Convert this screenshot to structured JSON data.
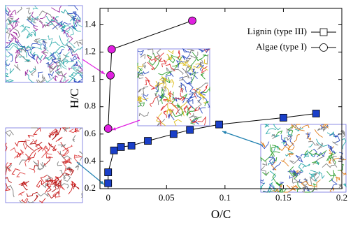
{
  "chart_data": {
    "type": "line",
    "x_label": "O/C",
    "y_label": "H/C",
    "xlim": [
      -0.007,
      0.2
    ],
    "ylim": [
      0.2,
      1.52
    ],
    "xticks": [
      0,
      0.05,
      0.1,
      0.15,
      0.2
    ],
    "yticks": [
      0.2,
      0.4,
      0.6,
      0.8,
      1,
      1.2,
      1.4
    ],
    "legend": "upper right",
    "series": [
      {
        "name": "Lignin (type III)",
        "color": "#1a3fc8",
        "marker": "square",
        "x": [
          0,
          0,
          0.005,
          0.011,
          0.02,
          0.034,
          0.056,
          0.07,
          0.095,
          0.15,
          0.178
        ],
        "values": [
          0.24,
          0.32,
          0.48,
          0.505,
          0.515,
          0.55,
          0.6,
          0.63,
          0.67,
          0.72,
          0.75
        ]
      },
      {
        "name": "Algae (type I)",
        "color": "#e020e0",
        "marker": "circle",
        "x": [
          0,
          0.002,
          0.003,
          0.072
        ],
        "values": [
          0.64,
          1.03,
          1.22,
          1.43
        ]
      }
    ]
  }
}
